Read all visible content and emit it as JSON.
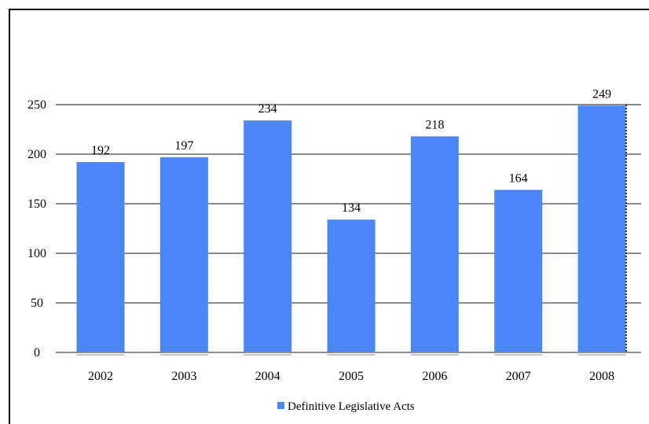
{
  "chart_data": {
    "type": "bar",
    "title": "",
    "xlabel": "",
    "ylabel": "",
    "categories": [
      "2002",
      "2003",
      "2004",
      "2005",
      "2006",
      "2007",
      "2008"
    ],
    "series": [
      {
        "name": "Definitive Legislative Acts",
        "values": [
          192,
          197,
          234,
          134,
          218,
          164,
          249
        ],
        "color": "#4A86F7"
      }
    ],
    "ylim": [
      0,
      250
    ],
    "yticks": [
      "0",
      "50",
      "100",
      "150",
      "200",
      "250"
    ],
    "grid": true,
    "legend_position": "bottom-center"
  }
}
